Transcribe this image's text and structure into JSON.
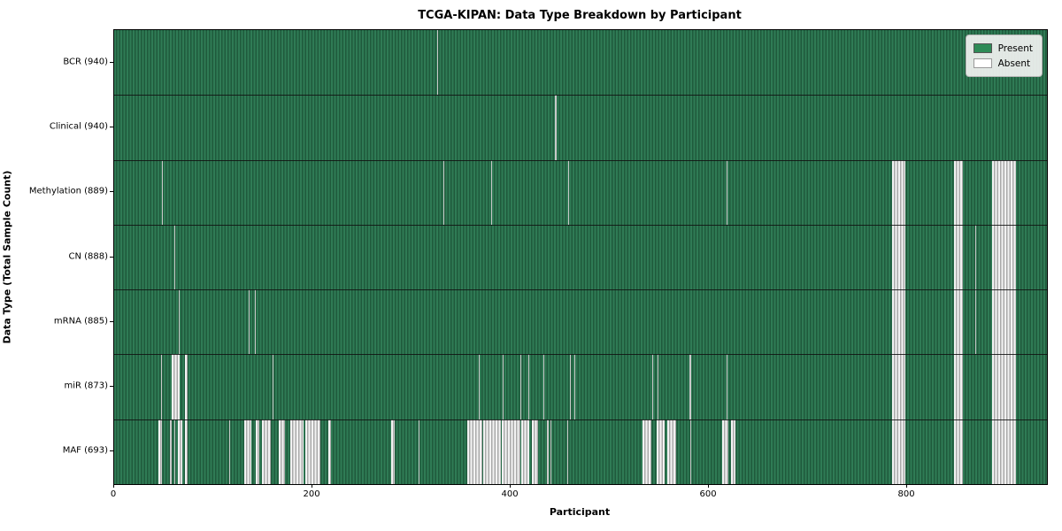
{
  "chart_data": {
    "type": "heatmap",
    "title": "TCGA-KIPAN: Data Type Breakdown by Participant",
    "xlabel": "Participant",
    "ylabel": "Data Type (Total Sample Count)",
    "x_ticks": [
      0,
      200,
      400,
      600,
      800
    ],
    "xlim": [
      0,
      941
    ],
    "n_participants": 941,
    "grid": false,
    "legend_position": "upper right",
    "legend": [
      {
        "label": "Present",
        "color": "#2e8b57"
      },
      {
        "label": "Absent",
        "color": "#ffffff"
      }
    ],
    "colors": {
      "present": "#2e8b57",
      "present_stripe_light": "#2f7b55",
      "present_stripe_dark": "#1f5a3c",
      "absent": "#ffffff",
      "absent_stripe_light": "#f2f2f2",
      "absent_stripe_dark": "#a9a9a9",
      "absent_thin": "#c9c9c9"
    },
    "rows": [
      {
        "label": "BCR (940)",
        "data_type": "BCR",
        "total_samples": 940,
        "absent_ranges": [
          [
            326,
            327
          ]
        ]
      },
      {
        "label": "Clinical (940)",
        "data_type": "Clinical",
        "total_samples": 940,
        "absent_ranges": [
          [
            445,
            446
          ]
        ]
      },
      {
        "label": "Methylation (889)",
        "data_type": "Methylation",
        "total_samples": 889,
        "absent_ranges": [
          [
            48,
            49
          ],
          [
            332,
            333
          ],
          [
            380,
            381
          ],
          [
            458,
            459
          ],
          [
            618,
            619
          ],
          [
            785,
            798
          ],
          [
            847,
            856
          ],
          [
            886,
            910
          ]
        ]
      },
      {
        "label": "CN (888)",
        "data_type": "CN",
        "total_samples": 888,
        "absent_ranges": [
          [
            61,
            62
          ],
          [
            869,
            870
          ],
          [
            785,
            798
          ],
          [
            847,
            856
          ],
          [
            886,
            910
          ]
        ]
      },
      {
        "label": "mRNA (885)",
        "data_type": "mRNA",
        "total_samples": 885,
        "absent_ranges": [
          [
            65,
            66
          ],
          [
            136,
            137
          ],
          [
            142,
            143
          ],
          [
            869,
            870
          ],
          [
            785,
            798
          ],
          [
            847,
            856
          ],
          [
            886,
            910
          ]
        ]
      },
      {
        "label": "miR (873)",
        "data_type": "miR",
        "total_samples": 873,
        "absent_ranges": [
          [
            47,
            48
          ],
          [
            58,
            66
          ],
          [
            71,
            74
          ],
          [
            160,
            161
          ],
          [
            368,
            369
          ],
          [
            392,
            393
          ],
          [
            410,
            411
          ],
          [
            418,
            419
          ],
          [
            433,
            434
          ],
          [
            460,
            461
          ],
          [
            464,
            465
          ],
          [
            543,
            544
          ],
          [
            548,
            549
          ],
          [
            580,
            582
          ],
          [
            618,
            619
          ],
          [
            785,
            798
          ],
          [
            847,
            856
          ],
          [
            886,
            910
          ]
        ]
      },
      {
        "label": "MAF (693)",
        "data_type": "MAF",
        "total_samples": 693,
        "absent_ranges": [
          [
            45,
            48
          ],
          [
            56,
            58
          ],
          [
            61,
            62
          ],
          [
            64,
            69
          ],
          [
            71,
            74
          ],
          [
            116,
            117
          ],
          [
            131,
            138
          ],
          [
            143,
            146
          ],
          [
            149,
            158
          ],
          [
            166,
            172
          ],
          [
            178,
            191
          ],
          [
            193,
            208
          ],
          [
            216,
            219
          ],
          [
            279,
            283
          ],
          [
            307,
            308
          ],
          [
            356,
            371
          ],
          [
            372,
            390
          ],
          [
            391,
            410
          ],
          [
            411,
            419
          ],
          [
            421,
            428
          ],
          [
            437,
            438
          ],
          [
            440,
            441
          ],
          [
            457,
            458
          ],
          [
            533,
            542
          ],
          [
            547,
            555
          ],
          [
            558,
            567
          ],
          [
            581,
            582
          ],
          [
            613,
            620
          ],
          [
            622,
            627
          ],
          [
            785,
            798
          ],
          [
            847,
            856
          ],
          [
            886,
            910
          ]
        ]
      }
    ]
  }
}
